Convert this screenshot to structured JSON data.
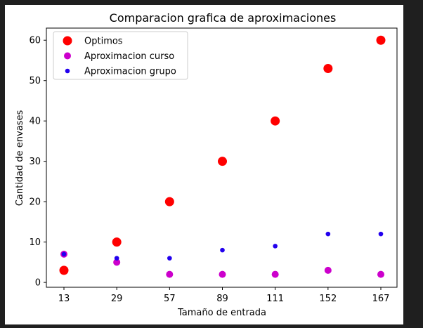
{
  "chart_data": {
    "type": "scatter",
    "title": "Comparacion grafica de aproximaciones",
    "xlabel": "Tamaño de entrada",
    "ylabel": "Cantidad de envases",
    "categories": [
      "13",
      "29",
      "57",
      "89",
      "111",
      "152",
      "167"
    ],
    "ylim": [
      -1.2,
      63
    ],
    "yticks": [
      0,
      10,
      20,
      30,
      40,
      50,
      60
    ],
    "grid": false,
    "legend_position": "upper-left",
    "series": [
      {
        "name": "Optimos",
        "color": "#ff0000",
        "marker": "large-circle",
        "values": [
          3,
          10,
          20,
          30,
          40,
          53,
          60
        ]
      },
      {
        "name": "Aproximacion curso",
        "color": "#cc00cc",
        "marker": "medium-circle",
        "values": [
          7,
          5,
          2,
          2,
          2,
          3,
          2
        ]
      },
      {
        "name": "Aproximacion grupo",
        "color": "#2200ee",
        "marker": "small-circle",
        "values": [
          7,
          6,
          6,
          8,
          9,
          12,
          12
        ]
      }
    ]
  }
}
